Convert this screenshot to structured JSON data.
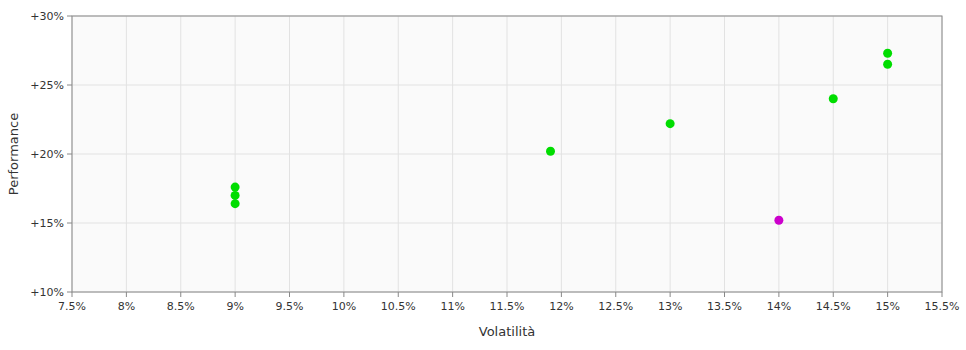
{
  "chart_data": {
    "type": "scatter",
    "x_label": "Volatilità",
    "y_label": "Performance",
    "xlim": [
      0.075,
      0.155
    ],
    "ylim": [
      0.1,
      0.3
    ],
    "xticks": [
      {
        "value": 0.075,
        "label": "7.5%"
      },
      {
        "value": 0.08,
        "label": "8%"
      },
      {
        "value": 0.085,
        "label": "8.5%"
      },
      {
        "value": 0.09,
        "label": "9%"
      },
      {
        "value": 0.095,
        "label": "9.5%"
      },
      {
        "value": 0.1,
        "label": "10%"
      },
      {
        "value": 0.105,
        "label": "10.5%"
      },
      {
        "value": 0.11,
        "label": "11%"
      },
      {
        "value": 0.115,
        "label": "11.5%"
      },
      {
        "value": 0.12,
        "label": "12%"
      },
      {
        "value": 0.125,
        "label": "12.5%"
      },
      {
        "value": 0.13,
        "label": "13%"
      },
      {
        "value": 0.135,
        "label": "13.5%"
      },
      {
        "value": 0.14,
        "label": "14%"
      },
      {
        "value": 0.145,
        "label": "14.5%"
      },
      {
        "value": 0.15,
        "label": "15%"
      },
      {
        "value": 0.155,
        "label": "15.5%"
      }
    ],
    "yticks": [
      {
        "value": 0.1,
        "label": "+10%"
      },
      {
        "value": 0.15,
        "label": "+15%"
      },
      {
        "value": 0.2,
        "label": "+20%"
      },
      {
        "value": 0.25,
        "label": "+25%"
      },
      {
        "value": 0.3,
        "label": "+30%"
      }
    ],
    "grid": true,
    "series": [
      {
        "color": "#00dd00",
        "x": [
          0.09,
          0.09,
          0.09,
          0.119,
          0.13,
          0.145,
          0.15,
          0.15
        ],
        "values": [
          0.176,
          0.17,
          0.164,
          0.202,
          0.222,
          0.24,
          0.273,
          0.265
        ]
      },
      {
        "color": "#cc00cc",
        "x": [
          0.14
        ],
        "values": [
          0.152
        ]
      }
    ]
  }
}
